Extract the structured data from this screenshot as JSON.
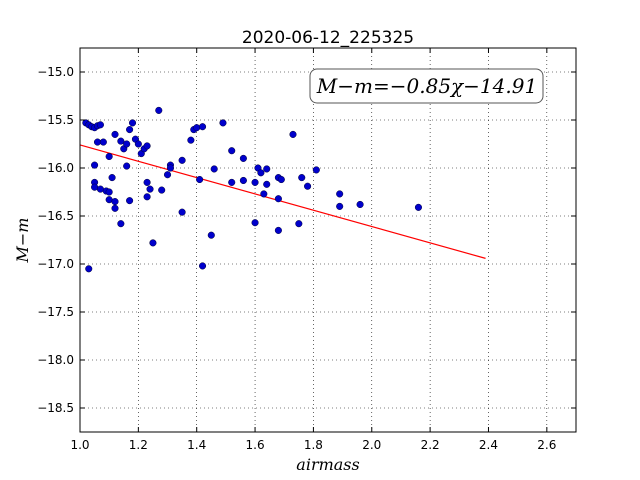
{
  "chart_data": {
    "type": "scatter",
    "title": "2020-06-12_225325",
    "xlabel": "airmass",
    "ylabel": "M−m",
    "annotation": "M−m=−0.85χ−14.91",
    "xlim": [
      1.0,
      2.7
    ],
    "ylim": [
      -18.75,
      -14.75
    ],
    "invert_y": true,
    "grid": true,
    "x_ticks": [
      1.0,
      1.2,
      1.4,
      1.6,
      1.8,
      2.0,
      2.2,
      2.4,
      2.6
    ],
    "x_tick_labels": [
      "1.0",
      "1.2",
      "1.4",
      "1.6",
      "1.8",
      "2.0",
      "2.2",
      "2.4",
      "2.6"
    ],
    "y_ticks": [
      -15.0,
      -15.5,
      -16.0,
      -16.5,
      -17.0,
      -17.5,
      -18.0,
      -18.5
    ],
    "y_tick_labels": [
      "−15.0",
      "−15.5",
      "−16.0",
      "−16.5",
      "−17.0",
      "−17.5",
      "−18.0",
      "−18.5"
    ],
    "fit": {
      "slope": -0.85,
      "intercept": -14.91,
      "x_range": [
        1.0,
        2.39
      ],
      "color": "#ff0000"
    },
    "point_color": "#0000cc",
    "points": [
      [
        1.02,
        -15.53
      ],
      [
        1.03,
        -15.55
      ],
      [
        1.04,
        -15.57
      ],
      [
        1.05,
        -15.58
      ],
      [
        1.06,
        -15.56
      ],
      [
        1.07,
        -15.55
      ],
      [
        1.06,
        -15.73
      ],
      [
        1.08,
        -15.73
      ],
      [
        1.05,
        -15.97
      ],
      [
        1.03,
        -17.05
      ],
      [
        1.05,
        -16.15
      ],
      [
        1.05,
        -16.2
      ],
      [
        1.07,
        -16.22
      ],
      [
        1.09,
        -16.24
      ],
      [
        1.1,
        -16.25
      ],
      [
        1.1,
        -15.88
      ],
      [
        1.1,
        -16.33
      ],
      [
        1.11,
        -16.1
      ],
      [
        1.12,
        -16.35
      ],
      [
        1.12,
        -16.42
      ],
      [
        1.12,
        -15.65
      ],
      [
        1.14,
        -15.72
      ],
      [
        1.14,
        -16.58
      ],
      [
        1.15,
        -15.8
      ],
      [
        1.16,
        -15.75
      ],
      [
        1.16,
        -15.98
      ],
      [
        1.17,
        -15.6
      ],
      [
        1.18,
        -15.53
      ],
      [
        1.19,
        -15.7
      ],
      [
        1.2,
        -15.75
      ],
      [
        1.17,
        -16.34
      ],
      [
        1.21,
        -15.85
      ],
      [
        1.22,
        -15.8
      ],
      [
        1.23,
        -15.77
      ],
      [
        1.23,
        -16.15
      ],
      [
        1.23,
        -16.3
      ],
      [
        1.24,
        -16.22
      ],
      [
        1.25,
        -16.78
      ],
      [
        1.27,
        -15.4
      ],
      [
        1.28,
        -16.23
      ],
      [
        1.3,
        -16.07
      ],
      [
        1.31,
        -15.97
      ],
      [
        1.31,
        -16.0
      ],
      [
        1.35,
        -15.92
      ],
      [
        1.35,
        -16.46
      ],
      [
        1.38,
        -15.71
      ],
      [
        1.39,
        -15.6
      ],
      [
        1.4,
        -15.58
      ],
      [
        1.41,
        -16.12
      ],
      [
        1.42,
        -17.02
      ],
      [
        1.42,
        -15.57
      ],
      [
        1.45,
        -16.7
      ],
      [
        1.46,
        -16.01
      ],
      [
        1.49,
        -15.53
      ],
      [
        1.52,
        -15.82
      ],
      [
        1.52,
        -16.15
      ],
      [
        1.56,
        -16.13
      ],
      [
        1.56,
        -15.9
      ],
      [
        1.6,
        -16.15
      ],
      [
        1.6,
        -16.57
      ],
      [
        1.61,
        -16.0
      ],
      [
        1.62,
        -16.05
      ],
      [
        1.63,
        -16.27
      ],
      [
        1.64,
        -16.17
      ],
      [
        1.64,
        -16.01
      ],
      [
        1.68,
        -16.1
      ],
      [
        1.68,
        -16.32
      ],
      [
        1.68,
        -16.65
      ],
      [
        1.69,
        -16.12
      ],
      [
        1.73,
        -15.65
      ],
      [
        1.75,
        -16.58
      ],
      [
        1.76,
        -16.1
      ],
      [
        1.78,
        -16.19
      ],
      [
        1.81,
        -16.02
      ],
      [
        1.89,
        -16.27
      ],
      [
        1.89,
        -16.4
      ],
      [
        1.96,
        -16.38
      ],
      [
        2.16,
        -16.41
      ]
    ]
  }
}
